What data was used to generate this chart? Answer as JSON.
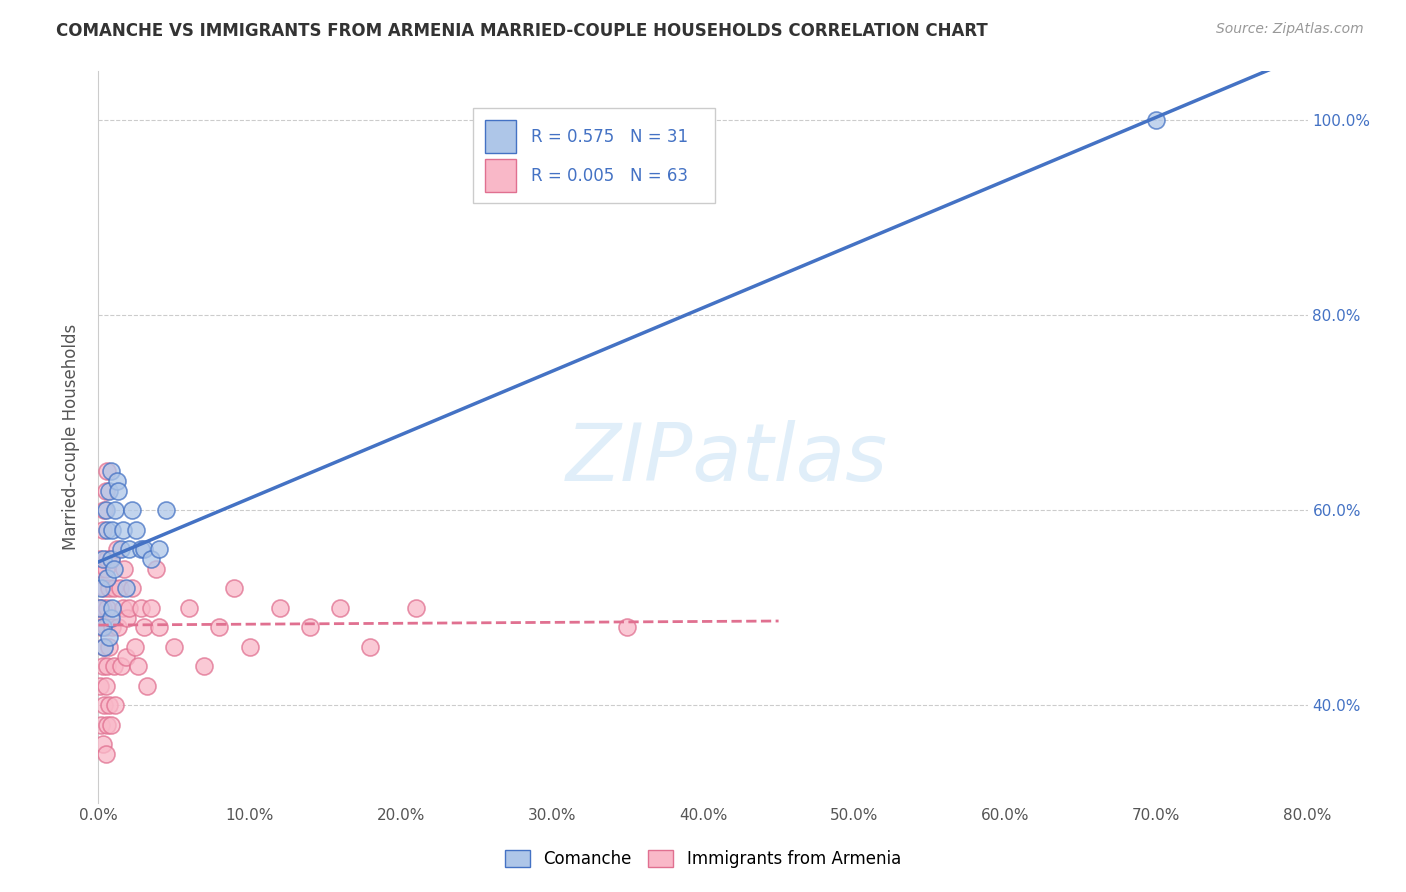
{
  "title": "COMANCHE VS IMMIGRANTS FROM ARMENIA MARRIED-COUPLE HOUSEHOLDS CORRELATION CHART",
  "source": "Source: ZipAtlas.com",
  "ylabel": "Married-couple Households",
  "legend_label1": "Comanche",
  "legend_label2": "Immigrants from Armenia",
  "R1": "0.575",
  "N1": 31,
  "R2": "0.005",
  "N2": 63,
  "color_blue": "#aec6e8",
  "color_pink": "#f9b8c8",
  "line_blue": "#4472c4",
  "line_pink": "#e07090",
  "comanche_x": [
    0.001,
    0.002,
    0.003,
    0.003,
    0.004,
    0.005,
    0.006,
    0.006,
    0.007,
    0.007,
    0.008,
    0.008,
    0.008,
    0.009,
    0.009,
    0.01,
    0.011,
    0.012,
    0.013,
    0.015,
    0.016,
    0.018,
    0.02,
    0.022,
    0.025,
    0.028,
    0.03,
    0.035,
    0.04,
    0.045,
    0.7
  ],
  "comanche_y": [
    0.5,
    0.52,
    0.48,
    0.55,
    0.46,
    0.6,
    0.58,
    0.53,
    0.62,
    0.47,
    0.49,
    0.64,
    0.55,
    0.5,
    0.58,
    0.54,
    0.6,
    0.63,
    0.62,
    0.56,
    0.58,
    0.52,
    0.56,
    0.6,
    0.58,
    0.56,
    0.56,
    0.55,
    0.56,
    0.6,
    1.0
  ],
  "armenia_x": [
    0.0005,
    0.001,
    0.001,
    0.002,
    0.002,
    0.002,
    0.003,
    0.003,
    0.003,
    0.003,
    0.004,
    0.004,
    0.004,
    0.004,
    0.005,
    0.005,
    0.005,
    0.005,
    0.005,
    0.006,
    0.006,
    0.006,
    0.006,
    0.006,
    0.007,
    0.007,
    0.007,
    0.008,
    0.008,
    0.009,
    0.01,
    0.01,
    0.011,
    0.012,
    0.013,
    0.014,
    0.015,
    0.016,
    0.017,
    0.018,
    0.019,
    0.02,
    0.022,
    0.024,
    0.026,
    0.028,
    0.03,
    0.032,
    0.035,
    0.038,
    0.04,
    0.05,
    0.06,
    0.07,
    0.08,
    0.09,
    0.1,
    0.12,
    0.14,
    0.16,
    0.18,
    0.21,
    0.35
  ],
  "armenia_y": [
    0.5,
    0.42,
    0.55,
    0.38,
    0.48,
    0.54,
    0.36,
    0.44,
    0.5,
    0.58,
    0.4,
    0.46,
    0.52,
    0.6,
    0.35,
    0.42,
    0.48,
    0.54,
    0.62,
    0.38,
    0.44,
    0.5,
    0.55,
    0.64,
    0.4,
    0.46,
    0.52,
    0.38,
    0.55,
    0.48,
    0.44,
    0.52,
    0.4,
    0.56,
    0.48,
    0.52,
    0.44,
    0.5,
    0.54,
    0.45,
    0.49,
    0.5,
    0.52,
    0.46,
    0.44,
    0.5,
    0.48,
    0.42,
    0.5,
    0.54,
    0.48,
    0.46,
    0.5,
    0.44,
    0.48,
    0.52,
    0.46,
    0.5,
    0.48,
    0.5,
    0.46,
    0.5,
    0.48
  ],
  "xlim": [
    0.0,
    0.8
  ],
  "ylim": [
    0.3,
    1.05
  ],
  "xtick_vals": [
    0.0,
    0.1,
    0.2,
    0.3,
    0.4,
    0.5,
    0.6,
    0.7,
    0.8
  ],
  "xtick_labels": [
    "0.0%",
    "10.0%",
    "20.0%",
    "30.0%",
    "40.0%",
    "50.0%",
    "60.0%",
    "70.0%",
    "80.0%"
  ],
  "ytick_vals": [
    0.4,
    0.6,
    0.8,
    1.0
  ],
  "ytick_labels": [
    "40.0%",
    "60.0%",
    "80.0%",
    "100.0%"
  ],
  "background_color": "#ffffff"
}
